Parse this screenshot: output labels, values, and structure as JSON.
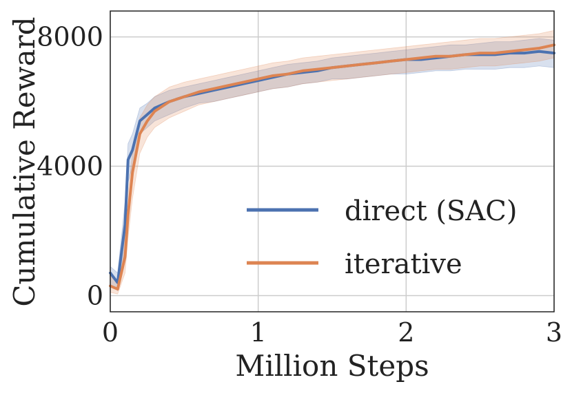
{
  "chart_data": {
    "type": "line",
    "title": "",
    "xlabel": "Million Steps",
    "ylabel": "Cumulative Reward",
    "xlim": [
      0,
      3
    ],
    "ylim": [
      -500,
      8800
    ],
    "xticks": [
      0,
      1,
      2,
      3
    ],
    "xtick_labels": [
      "0",
      "1",
      "2",
      "3"
    ],
    "yticks": [
      0,
      4000,
      8000
    ],
    "ytick_labels": [
      "0",
      "4000",
      "8000"
    ],
    "grid": true,
    "legend": "lower-right",
    "x": [
      0,
      0.05,
      0.1,
      0.12,
      0.15,
      0.2,
      0.25,
      0.3,
      0.4,
      0.5,
      0.6,
      0.7,
      0.8,
      0.9,
      1.0,
      1.1,
      1.2,
      1.3,
      1.4,
      1.5,
      1.6,
      1.7,
      1.8,
      1.9,
      2.0,
      2.1,
      2.2,
      2.3,
      2.4,
      2.5,
      2.6,
      2.7,
      2.8,
      2.9,
      3.0
    ],
    "series": [
      {
        "name": "direct (SAC)",
        "color": "#4c72b0",
        "values": [
          700,
          400,
          2200,
          4200,
          4500,
          5400,
          5600,
          5800,
          6000,
          6150,
          6250,
          6350,
          6450,
          6550,
          6650,
          6750,
          6850,
          6900,
          6950,
          7050,
          7100,
          7150,
          7200,
          7250,
          7300,
          7300,
          7350,
          7400,
          7450,
          7450,
          7450,
          7500,
          7500,
          7550,
          7500
        ],
        "lower": [
          350,
          150,
          1500,
          3500,
          4000,
          5000,
          5200,
          5400,
          5600,
          5800,
          5950,
          6000,
          6100,
          6200,
          6300,
          6400,
          6450,
          6550,
          6600,
          6700,
          6700,
          6750,
          6800,
          6850,
          6850,
          6900,
          6950,
          6950,
          7000,
          7000,
          7000,
          7050,
          7050,
          7100,
          7050
        ],
        "upper": [
          900,
          700,
          2900,
          4700,
          5000,
          5800,
          5950,
          6150,
          6350,
          6450,
          6550,
          6650,
          6750,
          6850,
          6950,
          7050,
          7150,
          7200,
          7250,
          7350,
          7400,
          7450,
          7500,
          7550,
          7600,
          7650,
          7700,
          7750,
          7750,
          7800,
          7850,
          7850,
          7900,
          7950,
          7900
        ]
      },
      {
        "name": "iterative",
        "color": "#dd8452",
        "values": [
          300,
          200,
          1200,
          2500,
          3800,
          5000,
          5400,
          5700,
          6000,
          6150,
          6300,
          6400,
          6500,
          6600,
          6700,
          6800,
          6850,
          6950,
          7000,
          7050,
          7100,
          7150,
          7200,
          7250,
          7300,
          7350,
          7400,
          7400,
          7450,
          7500,
          7500,
          7550,
          7600,
          7650,
          7750
        ],
        "lower": [
          100,
          50,
          700,
          1800,
          3000,
          4400,
          4900,
          5200,
          5500,
          5700,
          5900,
          6000,
          6100,
          6200,
          6300,
          6400,
          6450,
          6550,
          6600,
          6650,
          6700,
          6750,
          6800,
          6850,
          6900,
          6950,
          7000,
          7000,
          7050,
          7100,
          7100,
          7150,
          7200,
          7250,
          7350
        ],
        "upper": [
          600,
          400,
          1800,
          3200,
          4400,
          5500,
          5900,
          6150,
          6450,
          6600,
          6700,
          6800,
          6900,
          7000,
          7100,
          7200,
          7250,
          7350,
          7400,
          7450,
          7500,
          7550,
          7600,
          7650,
          7700,
          7750,
          7800,
          7850,
          7900,
          7950,
          7950,
          8000,
          8050,
          8100,
          8200
        ]
      }
    ]
  }
}
